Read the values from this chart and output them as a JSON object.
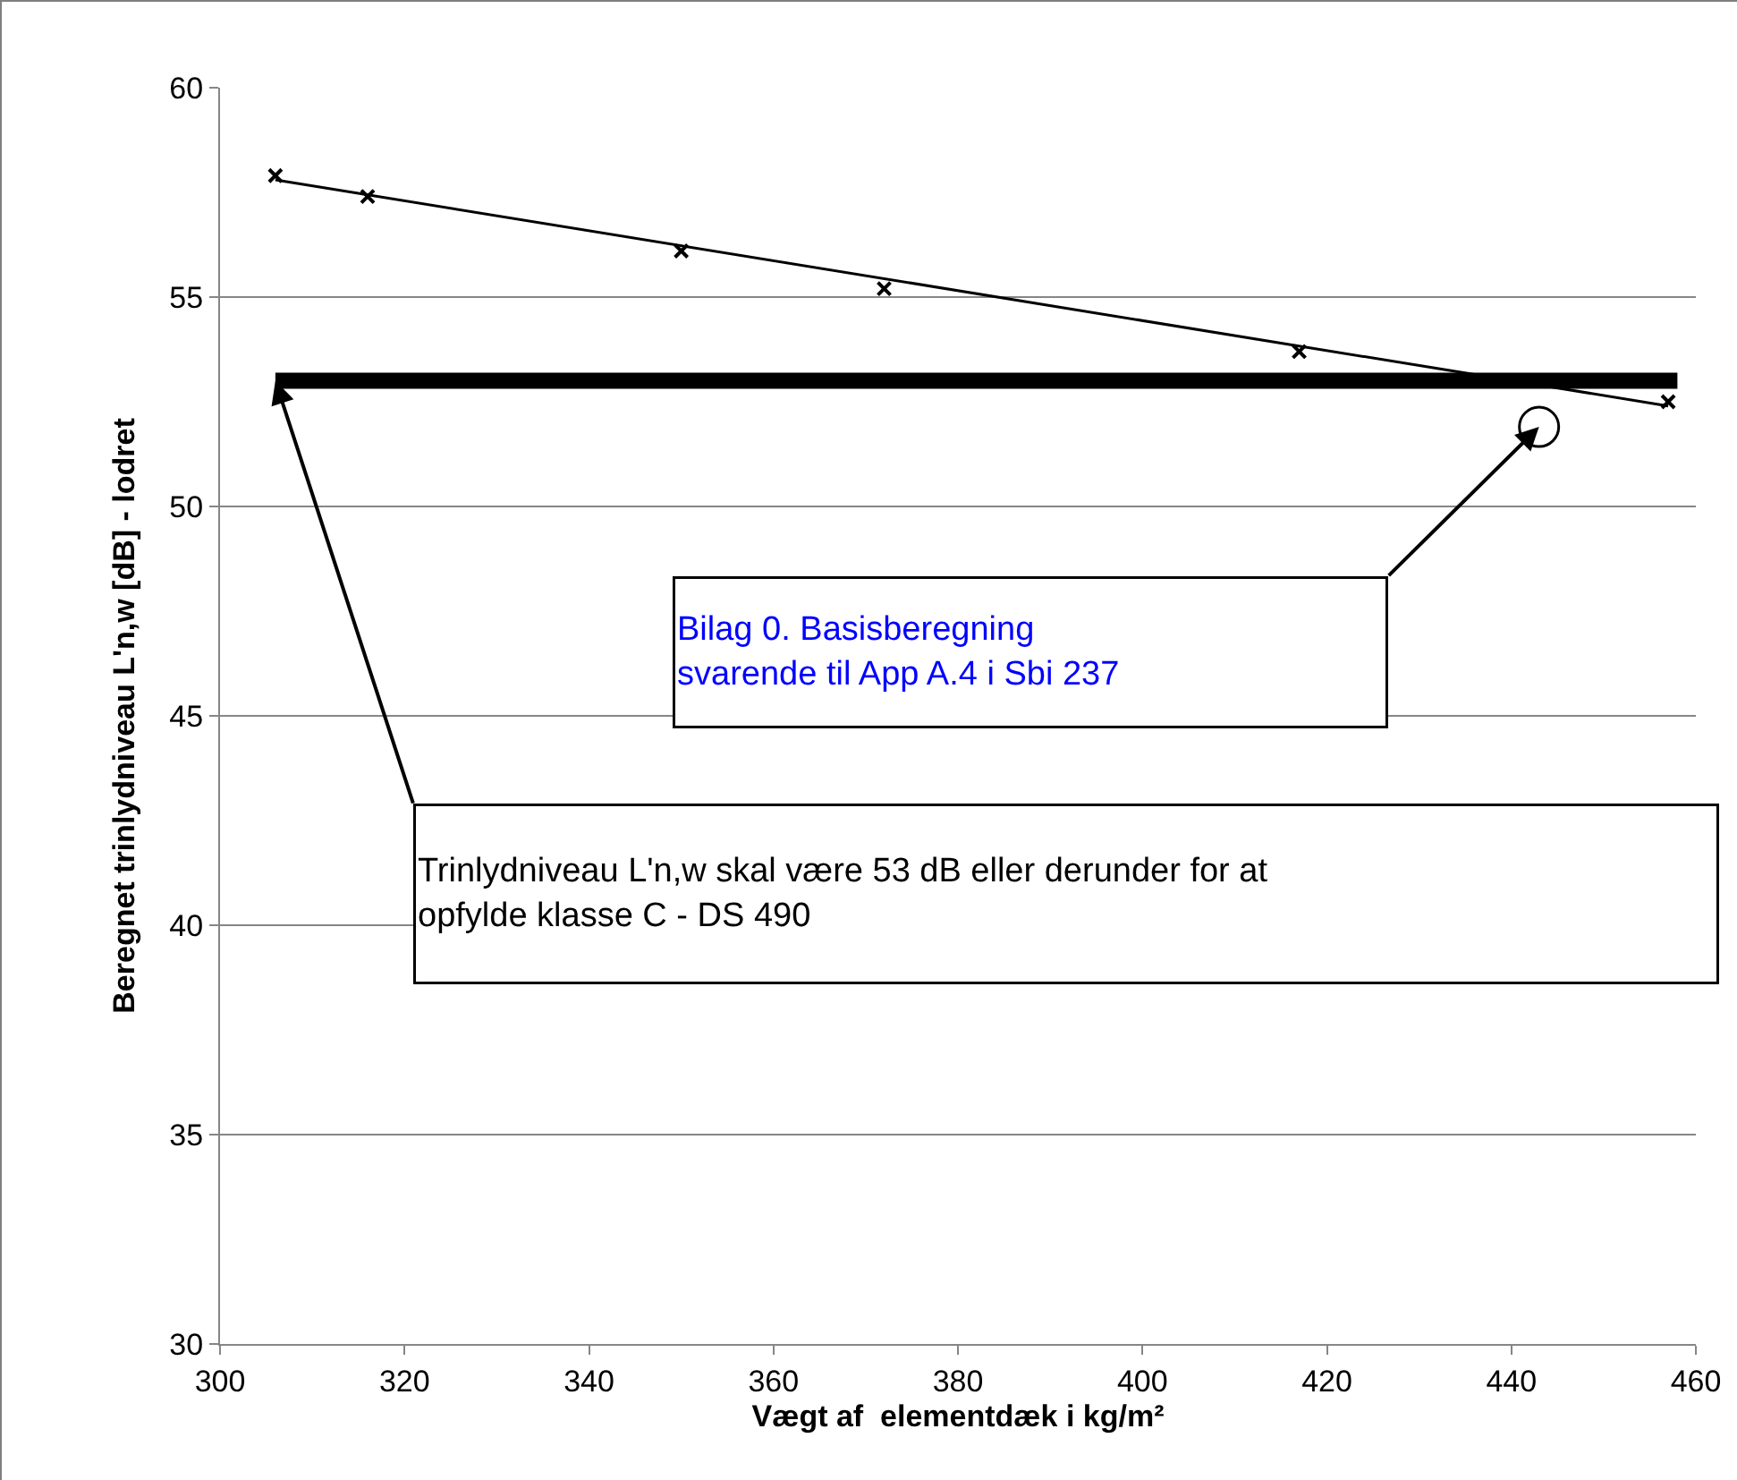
{
  "chart_data": {
    "type": "scatter",
    "xlabel": "Vægt af  elementdæk i kg/m²",
    "ylabel": "Beregnet trinlydniveau L'n,w [dB] - lodret",
    "xlim": [
      300,
      460
    ],
    "xticks": [
      300,
      320,
      340,
      360,
      380,
      400,
      420,
      440,
      460
    ],
    "ylim": [
      30,
      60
    ],
    "yticks": [
      30,
      35,
      40,
      45,
      50,
      55,
      60
    ],
    "grid": "y",
    "legend": false,
    "series": [
      {
        "type": "scatter",
        "marker": "cross",
        "color": "#000000",
        "x": [
          306,
          316,
          350,
          372,
          417,
          457
        ],
        "values": [
          57.9,
          57.4,
          56.1,
          55.2,
          53.7,
          52.5
        ]
      },
      {
        "type": "line",
        "color": "#000000",
        "x": [
          306,
          457
        ],
        "values": [
          57.8,
          52.4
        ]
      },
      {
        "type": "line",
        "color": "#000000",
        "x": [
          306,
          458
        ],
        "values": [
          53,
          53
        ]
      },
      {
        "type": "scatter",
        "marker": "circle",
        "color": "#000000",
        "x": [
          443
        ],
        "values": [
          51.9
        ]
      }
    ],
    "annotations": [
      "Bilag 0. Basisberegning\nsvarende til App A.4 i Sbi 237",
      "Trinlydniveau L'n,w skal være 53 dB eller derunder for at\nopfylde klasse C - DS 490"
    ]
  }
}
